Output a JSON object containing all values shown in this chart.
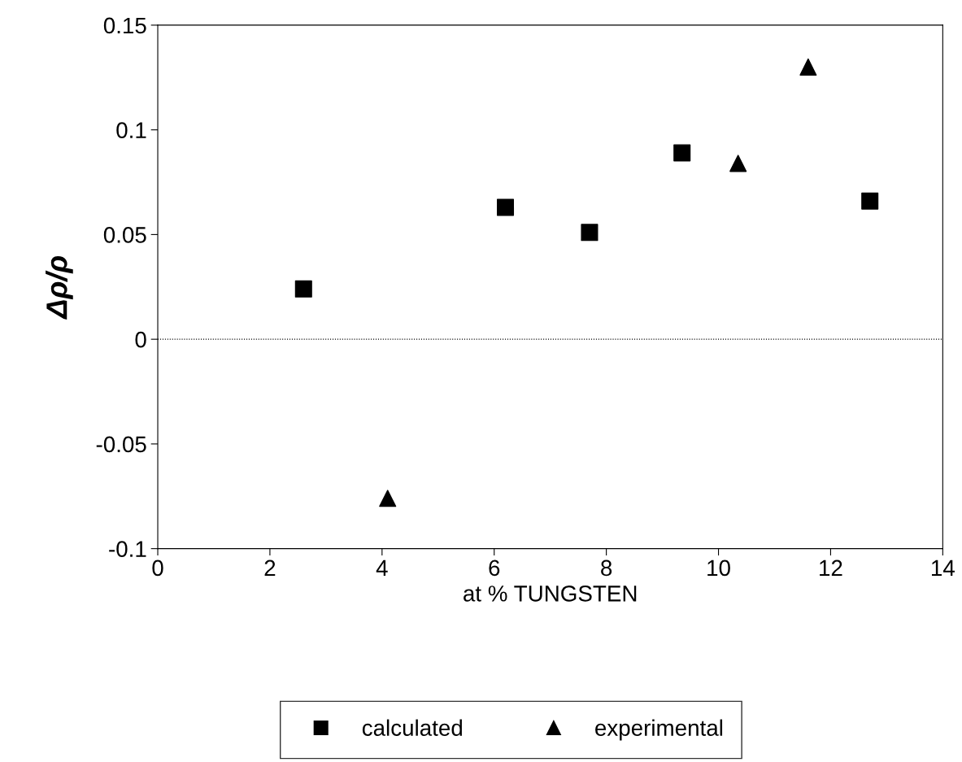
{
  "chart_data": {
    "type": "scatter",
    "xlabel": "at % TUNGSTEN",
    "ylabel": "Δρ/ρ",
    "series": [
      {
        "name": "calculated",
        "color": "#000000",
        "marker": "square",
        "x": [
          2.6,
          6.2,
          7.7,
          9.35,
          12.7
        ],
        "values": [
          0.024,
          0.063,
          0.051,
          0.089,
          0.066
        ]
      },
      {
        "name": "experimental",
        "color": "#000000",
        "marker": "triangle",
        "x": [
          4.1,
          10.35,
          11.6
        ],
        "values": [
          -0.076,
          0.084,
          0.13
        ]
      }
    ],
    "xlim": [
      0,
      14
    ],
    "xticks": [
      0,
      2,
      4,
      6,
      8,
      10,
      12,
      14
    ],
    "ylim": [
      -0.1,
      0.15
    ],
    "yticks": [
      {
        "value": -0.1,
        "label": "-0.1"
      },
      {
        "value": -0.05,
        "label": "-0.05"
      },
      0,
      0.05,
      0.1,
      0.15
    ],
    "ref_lines": [
      {
        "axis": "y",
        "value": 0,
        "line_style": "dotted",
        "color": "#000000"
      }
    ],
    "grid": false,
    "legend": "bottom"
  }
}
